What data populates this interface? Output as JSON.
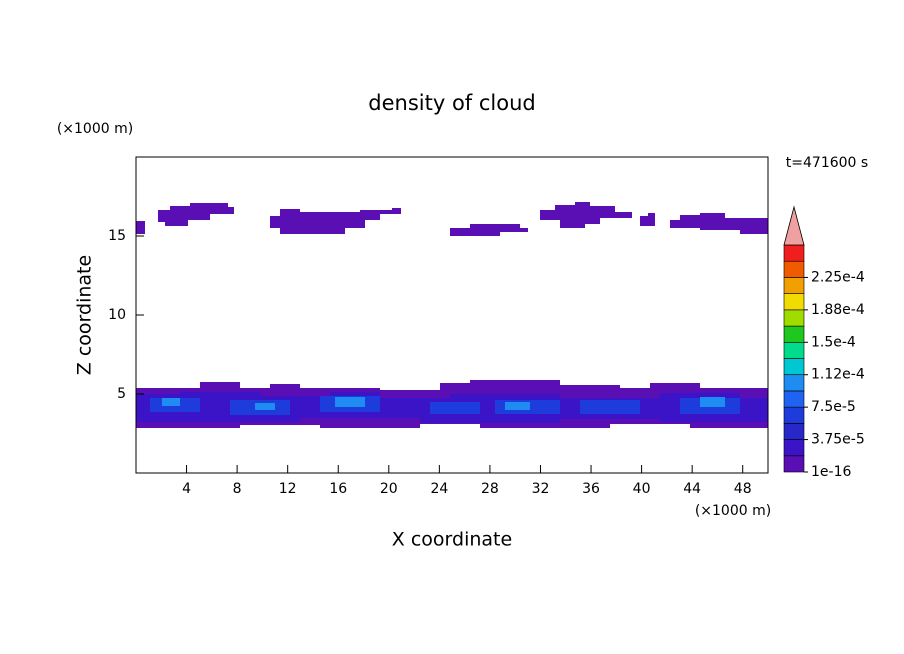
{
  "chart_data": {
    "type": "contour",
    "title": "density of cloud",
    "x_label": "X coordinate",
    "y_label": "Z coordinate",
    "x_unit": "(×1000 m)",
    "y_unit": "(×1000 m)",
    "time_label": "t=471600 s",
    "xlim": [
      0,
      50
    ],
    "ylim": [
      0,
      20
    ],
    "xticks": [
      4,
      8,
      12,
      16,
      20,
      24,
      28,
      32,
      36,
      40,
      44,
      48
    ],
    "yticks": [
      5,
      10,
      15
    ],
    "colorbar": {
      "colors": [
        "#5a0fb4",
        "#3c14c8",
        "#2828c8",
        "#1e3cdc",
        "#1e64f0",
        "#1e8cf0",
        "#00c8d2",
        "#00dc8c",
        "#1ec81e",
        "#a0dc00",
        "#f0dc00",
        "#f0a000",
        "#f05a00",
        "#f01e1e"
      ],
      "over_color": "#f0a0a0",
      "ticks": [
        {
          "value": 1e-16,
          "label": "1e-16"
        },
        {
          "value": 3.75e-05,
          "label": "3.75e-5"
        },
        {
          "value": 7.5e-05,
          "label": "7.5e-5"
        },
        {
          "value": 0.000112,
          "label": "1.12e-4"
        },
        {
          "value": 0.00015,
          "label": "1.5e-4"
        },
        {
          "value": 0.000188,
          "label": "1.88e-4"
        },
        {
          "value": 0.000225,
          "label": "2.25e-4"
        }
      ]
    }
  }
}
